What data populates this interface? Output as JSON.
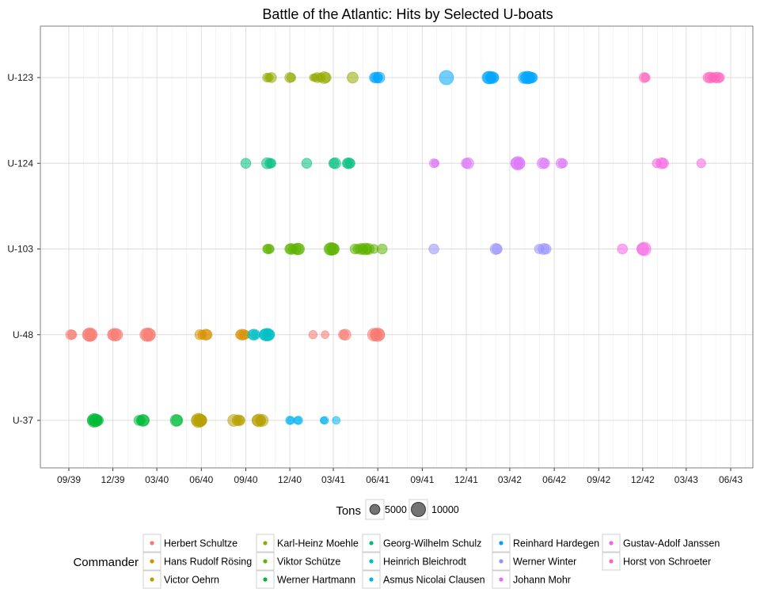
{
  "chart_data": {
    "type": "scatter",
    "title": "Battle of the Atlantic: Hits by Selected U-boats",
    "xlabel": "",
    "ylabel": "",
    "x_axis": {
      "kind": "date",
      "range": [
        "1939-08-01",
        "1943-07-15"
      ],
      "tick_labels": [
        "09/39",
        "12/39",
        "03/40",
        "06/40",
        "09/40",
        "12/40",
        "03/41",
        "06/41",
        "09/41",
        "12/41",
        "03/42",
        "06/42",
        "09/42",
        "12/42",
        "03/43",
        "06/43"
      ],
      "tick_dates": [
        "1939-09-01",
        "1939-12-01",
        "1940-03-01",
        "1940-06-01",
        "1940-09-01",
        "1940-12-01",
        "1941-03-01",
        "1941-06-01",
        "1941-09-01",
        "1941-12-01",
        "1942-03-01",
        "1942-06-01",
        "1942-09-01",
        "1942-12-01",
        "1943-03-01",
        "1943-06-01"
      ]
    },
    "y_axis": {
      "kind": "category",
      "categories": [
        "U-37",
        "U-48",
        "U-103",
        "U-124",
        "U-123"
      ]
    },
    "grid": true,
    "size_legend": {
      "title": "Tons",
      "entries": [
        {
          "label": "5000",
          "tons": 5000
        },
        {
          "label": "10000",
          "tons": 10000
        }
      ]
    },
    "color_legend": {
      "title": "Commander",
      "placement": "bottom",
      "entries": [
        {
          "name": "Herbert Schultze",
          "color": "#F8766D"
        },
        {
          "name": "Hans Rudolf Rösing",
          "color": "#D89000"
        },
        {
          "name": "Victor Oehrn",
          "color": "#B79F00"
        },
        {
          "name": "Karl-Heinz Moehle",
          "color": "#93AA00"
        },
        {
          "name": "Viktor Schütze",
          "color": "#5EB300"
        },
        {
          "name": "Werner Hartmann",
          "color": "#00BA38"
        },
        {
          "name": "Georg-Wilhelm Schulz",
          "color": "#00BF7D"
        },
        {
          "name": "Heinrich Bleichrodt",
          "color": "#00BFC4"
        },
        {
          "name": "Asmus Nicolai Clausen",
          "color": "#00B4F0"
        },
        {
          "name": "Reinhard Hardegen",
          "color": "#00A5FF"
        },
        {
          "name": "Werner Winter",
          "color": "#9590FF"
        },
        {
          "name": "Johann Mohr",
          "color": "#DC71FA"
        },
        {
          "name": "Gustav-Adolf Janssen",
          "color": "#F564E3"
        },
        {
          "name": "Horst von Schroeter",
          "color": "#FF62BC"
        }
      ]
    },
    "series": [
      {
        "boat": "U-37",
        "commander": "Werner Hartmann",
        "points": [
          [
            "1939-10-20",
            5000
          ],
          [
            "1939-10-23",
            9000
          ],
          [
            "1939-10-25",
            7000
          ],
          [
            "1939-10-27",
            8000
          ],
          [
            "1939-10-30",
            4000
          ],
          [
            "1939-11-01",
            5000
          ]
        ]
      },
      {
        "boat": "U-37",
        "commander": "Victor Oehrn",
        "points": [
          [
            "1940-05-23",
            6000
          ],
          [
            "1940-05-26",
            10000
          ],
          [
            "1940-05-29",
            8000
          ],
          [
            "1940-05-31",
            7000
          ],
          [
            "1940-06-02",
            5000
          ],
          [
            "1940-08-07",
            7000
          ],
          [
            "1940-08-14",
            5000
          ],
          [
            "1940-08-18",
            6000
          ],
          [
            "1940-08-21",
            4000
          ],
          [
            "1940-09-25",
            6000
          ],
          [
            "1940-09-28",
            8000
          ],
          [
            "1940-10-02",
            5000
          ],
          [
            "1940-10-05",
            7000
          ]
        ]
      },
      {
        "boat": "U-37",
        "commander": "Asmus Nicolai Clausen",
        "points": [
          [
            "1940-12-01",
            3500
          ],
          [
            "1940-12-03",
            3000
          ],
          [
            "1940-12-17",
            3000
          ],
          [
            "1940-12-19",
            3500
          ],
          [
            "1941-02-09",
            2500
          ],
          [
            "1941-02-11",
            3000
          ],
          [
            "1941-03-07",
            3000
          ]
        ]
      },
      {
        "boat": "U-37",
        "commander": "Werner Hartmann",
        "points": [
          [
            "1940-01-24",
            5000
          ],
          [
            "1940-01-28",
            4000
          ],
          [
            "1940-02-01",
            7000
          ],
          [
            "1940-02-03",
            6000
          ],
          [
            "1940-04-10",
            7000
          ],
          [
            "1940-04-12",
            6000
          ]
        ]
      },
      {
        "boat": "U-48",
        "commander": "Herbert Schultze",
        "points": [
          [
            "1939-09-05",
            5000
          ],
          [
            "1939-09-08",
            4000
          ],
          [
            "1939-10-12",
            8000
          ],
          [
            "1939-10-15",
            9000
          ],
          [
            "1939-10-17",
            7000
          ],
          [
            "1939-12-01",
            6000
          ],
          [
            "1939-12-05",
            8000
          ],
          [
            "1939-12-09",
            7000
          ],
          [
            "1940-02-08",
            8000
          ],
          [
            "1940-02-12",
            9000
          ],
          [
            "1940-02-15",
            7000
          ],
          [
            "1941-01-18",
            3500
          ],
          [
            "1941-02-12",
            3000
          ],
          [
            "1941-03-22",
            5000
          ],
          [
            "1941-03-26",
            6000
          ],
          [
            "1941-05-24",
            8000
          ],
          [
            "1941-05-28",
            7000
          ],
          [
            "1941-06-01",
            9000
          ],
          [
            "1941-06-04",
            6000
          ]
        ]
      },
      {
        "boat": "U-48",
        "commander": "Hans Rudolf Rösing",
        "points": [
          [
            "1940-05-29",
            5000
          ],
          [
            "1940-06-03",
            4000
          ],
          [
            "1940-06-10",
            6000
          ],
          [
            "1940-06-13",
            5000
          ],
          [
            "1940-08-20",
            4000
          ],
          [
            "1940-08-24",
            6000
          ],
          [
            "1940-08-28",
            5000
          ],
          [
            "1940-09-01",
            3500
          ]
        ]
      },
      {
        "boat": "U-48",
        "commander": "Heinrich Bleichrodt",
        "points": [
          [
            "1940-09-15",
            5000
          ],
          [
            "1940-09-18",
            6000
          ],
          [
            "1940-09-21",
            4000
          ],
          [
            "1940-10-10",
            6000
          ],
          [
            "1940-10-12",
            7000
          ],
          [
            "1940-10-15",
            8000
          ],
          [
            "1940-10-18",
            7000
          ],
          [
            "1940-10-20",
            5000
          ]
        ]
      },
      {
        "boat": "U-103",
        "commander": "Viktor Schütze",
        "points": [
          [
            "1940-10-15",
            4000
          ],
          [
            "1940-10-18",
            5000
          ],
          [
            "1940-10-21",
            3500
          ],
          [
            "1940-12-01",
            5000
          ],
          [
            "1940-12-04",
            6000
          ],
          [
            "1940-12-07",
            4000
          ],
          [
            "1940-12-14",
            5000
          ],
          [
            "1940-12-17",
            7000
          ],
          [
            "1940-12-20",
            6000
          ],
          [
            "1941-02-22",
            7000
          ],
          [
            "1941-02-25",
            8000
          ],
          [
            "1941-02-28",
            7000
          ],
          [
            "1941-03-02",
            6000
          ],
          [
            "1941-04-15",
            5000
          ],
          [
            "1941-04-20",
            4000
          ],
          [
            "1941-04-27",
            6000
          ],
          [
            "1941-05-01",
            5000
          ],
          [
            "1941-05-06",
            7000
          ],
          [
            "1941-05-10",
            4500
          ],
          [
            "1941-05-13",
            6000
          ],
          [
            "1941-05-24",
            4000
          ],
          [
            "1941-06-10",
            5000
          ]
        ]
      },
      {
        "boat": "U-103",
        "commander": "Werner Winter",
        "points": [
          [
            "1941-09-25",
            5000
          ],
          [
            "1942-01-31",
            6000
          ],
          [
            "1942-02-03",
            5000
          ],
          [
            "1942-05-01",
            4500
          ],
          [
            "1942-05-10",
            6000
          ],
          [
            "1942-05-15",
            5000
          ]
        ]
      },
      {
        "boat": "U-103",
        "commander": "Gustav-Adolf Janssen",
        "points": [
          [
            "1942-10-20",
            5000
          ],
          [
            "1942-12-01",
            7000
          ],
          [
            "1942-12-04",
            9000
          ]
        ]
      },
      {
        "boat": "U-124",
        "commander": "Georg-Wilhelm Schulz",
        "points": [
          [
            "1940-09-01",
            5000
          ],
          [
            "1940-10-15",
            6000
          ],
          [
            "1940-10-21",
            5000
          ],
          [
            "1940-10-24",
            4000
          ],
          [
            "1941-01-05",
            5000
          ],
          [
            "1941-03-02",
            5000
          ],
          [
            "1941-03-05",
            6000
          ],
          [
            "1941-03-30",
            5000
          ],
          [
            "1941-04-02",
            6000
          ],
          [
            "1941-04-05",
            4500
          ]
        ]
      },
      {
        "boat": "U-124",
        "commander": "Johann Mohr",
        "points": [
          [
            "1941-09-25",
            4000
          ],
          [
            "1941-09-28",
            3000
          ],
          [
            "1941-12-01",
            5000
          ],
          [
            "1941-12-05",
            6000
          ],
          [
            "1942-03-15",
            7000
          ],
          [
            "1942-03-18",
            9000
          ],
          [
            "1942-03-21",
            6000
          ],
          [
            "1942-05-08",
            6000
          ],
          [
            "1942-05-12",
            5000
          ],
          [
            "1942-06-15",
            5000
          ],
          [
            "1942-06-19",
            4000
          ]
        ]
      },
      {
        "boat": "U-124",
        "commander": "Gustav-Adolf Janssen",
        "points": [
          [
            "1942-12-30",
            4000
          ],
          [
            "1943-01-09",
            6000
          ],
          [
            "1943-01-13",
            5000
          ],
          [
            "1943-04-01",
            4000
          ]
        ]
      },
      {
        "boat": "U-123",
        "commander": "Karl-Heinz Moehle",
        "points": [
          [
            "1940-10-15",
            4000
          ],
          [
            "1940-10-19",
            3500
          ],
          [
            "1940-10-24",
            5000
          ],
          [
            "1940-12-01",
            5000
          ],
          [
            "1940-12-04",
            4000
          ],
          [
            "1941-01-18",
            2500
          ],
          [
            "1941-01-22",
            3000
          ],
          [
            "1941-01-27",
            5000
          ],
          [
            "1941-02-03",
            4000
          ],
          [
            "1941-02-10",
            7000
          ],
          [
            "1941-02-14",
            5000
          ],
          [
            "1941-04-10",
            6000
          ]
        ]
      },
      {
        "boat": "U-123",
        "commander": "Reinhard Hardegen",
        "points": [
          [
            "1941-05-25",
            5000
          ],
          [
            "1941-05-29",
            6000
          ],
          [
            "1941-06-01",
            4500
          ],
          [
            "1941-06-04",
            6000
          ],
          [
            "1941-10-21",
            10000
          ],
          [
            "1942-01-15",
            7000
          ],
          [
            "1942-01-18",
            8000
          ],
          [
            "1942-01-21",
            6000
          ],
          [
            "1942-01-24",
            7000
          ],
          [
            "1942-01-27",
            5000
          ],
          [
            "1942-03-31",
            7000
          ],
          [
            "1942-04-03",
            6000
          ],
          [
            "1942-04-07",
            8000
          ],
          [
            "1942-04-10",
            7000
          ],
          [
            "1942-04-14",
            6000
          ],
          [
            "1942-04-17",
            5000
          ]
        ]
      },
      {
        "boat": "U-123",
        "commander": "Horst von Schroeter",
        "points": [
          [
            "1942-12-04",
            5000
          ],
          [
            "1942-12-07",
            4000
          ],
          [
            "1943-04-15",
            5000
          ],
          [
            "1943-04-20",
            6000
          ],
          [
            "1943-04-25",
            4000
          ],
          [
            "1943-04-30",
            5000
          ],
          [
            "1943-05-05",
            6000
          ],
          [
            "1943-05-10",
            4000
          ]
        ]
      }
    ]
  }
}
